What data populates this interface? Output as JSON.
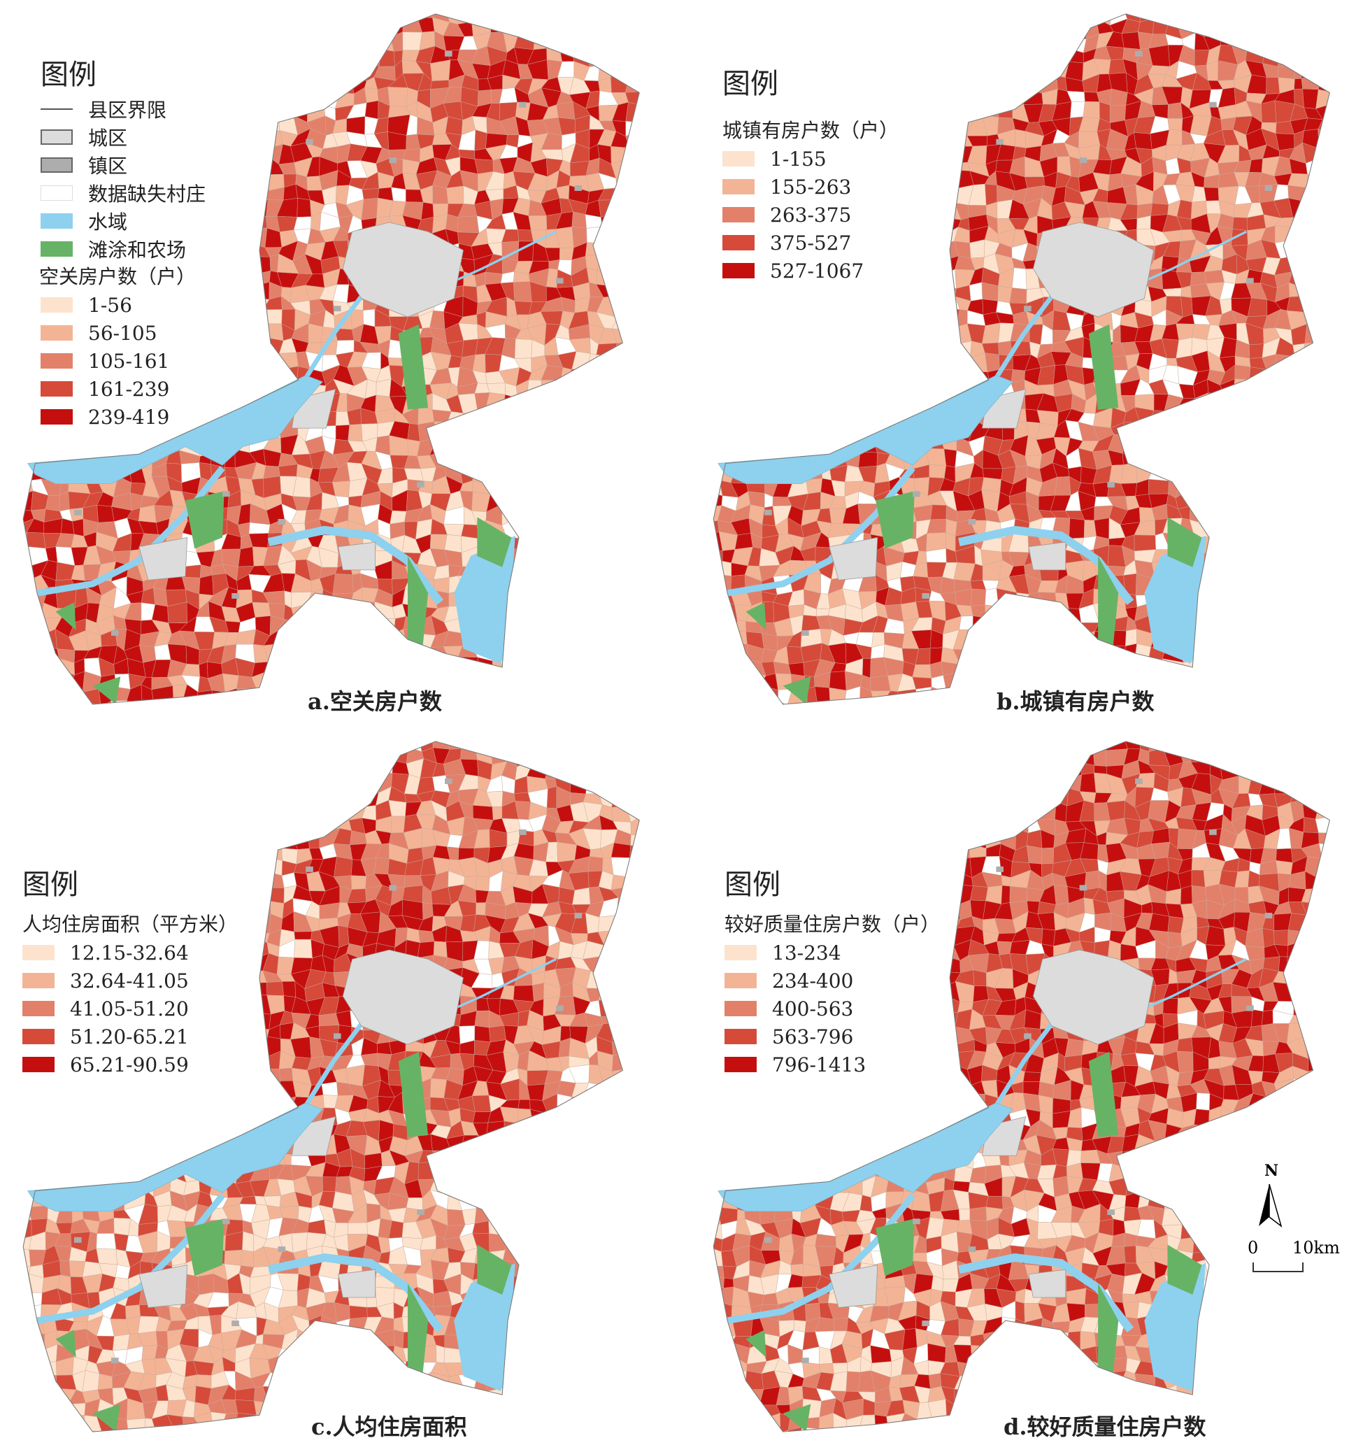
{
  "colors": {
    "class_1": "#fde3cd",
    "class_2": "#f3b495",
    "class_3": "#e3806a",
    "class_4": "#d64a3a",
    "class_5": "#c50f0f",
    "city": "#dcdcdc",
    "town": "#adadad",
    "missing": "#ffffff",
    "water": "#8dd1ee",
    "farm": "#67b366",
    "boundary": "#7a7a7a"
  },
  "legend_common": {
    "title": "图例",
    "items": [
      {
        "symbol": "line",
        "label": "县区界限"
      },
      {
        "symbol": "city",
        "label": "城区"
      },
      {
        "symbol": "town",
        "label": "镇区"
      },
      {
        "symbol": "missing",
        "label": "数据缺失村庄"
      },
      {
        "symbol": "water",
        "label": "水域"
      },
      {
        "symbol": "farm",
        "label": "滩涂和农场"
      }
    ]
  },
  "panels": [
    {
      "caption": "a.空关房户数",
      "legend_title": "图例",
      "variable": "空关房户数（户）",
      "classes": [
        "1-56",
        "56-105",
        "105-161",
        "161-239",
        "239-419"
      ]
    },
    {
      "caption": "b.城镇有房户数",
      "legend_title": "图例",
      "variable": "城镇有房户数（户）",
      "classes": [
        "1-155",
        "155-263",
        "263-375",
        "375-527",
        "527-1067"
      ]
    },
    {
      "caption": "c.人均住房面积",
      "legend_title": "图例",
      "variable": "人均住房面积（平方米）",
      "classes": [
        "12.15-32.64",
        "32.64-41.05",
        "41.05-51.20",
        "51.20-65.21",
        "65.21-90.59"
      ]
    },
    {
      "caption": "d.较好质量住房户数",
      "legend_title": "图例",
      "variable": "较好质量住房户数（户）",
      "classes": [
        "13-234",
        "234-400",
        "400-563",
        "563-796",
        "796-1413"
      ]
    }
  ],
  "north_arrow": {
    "label": "N"
  },
  "scale_bar": {
    "start": "0",
    "end": "10km"
  }
}
